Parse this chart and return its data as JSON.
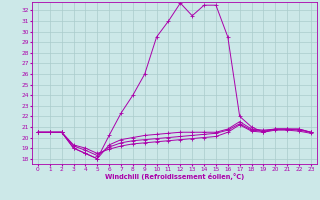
{
  "xlabel": "Windchill (Refroidissement éolien,°C)",
  "bg_color": "#cce8e8",
  "grid_color": "#aacccc",
  "line_color": "#aa00aa",
  "spine_color": "#aa00aa",
  "xlim": [
    -0.5,
    23.5
  ],
  "ylim": [
    17.5,
    32.8
  ],
  "xticks": [
    0,
    1,
    2,
    3,
    4,
    5,
    6,
    7,
    8,
    9,
    10,
    11,
    12,
    13,
    14,
    15,
    16,
    17,
    18,
    19,
    20,
    21,
    22,
    23
  ],
  "yticks": [
    18,
    19,
    20,
    21,
    22,
    23,
    24,
    25,
    26,
    27,
    28,
    29,
    30,
    31,
    32
  ],
  "series": [
    {
      "x": [
        0,
        1,
        2,
        3,
        4,
        5,
        6,
        7,
        8,
        9,
        10,
        11,
        12,
        13,
        14,
        15,
        16,
        17,
        18,
        19,
        20,
        21,
        22,
        23
      ],
      "y": [
        20.5,
        20.5,
        20.5,
        19.0,
        18.5,
        18.0,
        20.2,
        22.3,
        24.0,
        26.0,
        29.5,
        31.0,
        32.7,
        31.5,
        32.5,
        32.5,
        29.5,
        22.0,
        21.0,
        20.5,
        20.8,
        20.8,
        20.8,
        20.5
      ]
    },
    {
      "x": [
        0,
        1,
        2,
        3,
        4,
        5,
        6,
        7,
        8,
        9,
        10,
        11,
        12,
        13,
        14,
        15,
        16,
        17,
        18,
        19,
        20,
        21,
        22,
        23
      ],
      "y": [
        20.5,
        20.5,
        20.5,
        19.0,
        18.5,
        18.0,
        19.3,
        19.8,
        20.0,
        20.2,
        20.3,
        20.4,
        20.5,
        20.5,
        20.5,
        20.5,
        20.8,
        21.5,
        20.8,
        20.7,
        20.8,
        20.8,
        20.8,
        20.5
      ]
    },
    {
      "x": [
        0,
        1,
        2,
        3,
        4,
        5,
        6,
        7,
        8,
        9,
        10,
        11,
        12,
        13,
        14,
        15,
        16,
        17,
        18,
        19,
        20,
        21,
        22,
        23
      ],
      "y": [
        20.5,
        20.5,
        20.5,
        19.2,
        18.8,
        18.3,
        19.1,
        19.5,
        19.7,
        19.8,
        19.9,
        20.0,
        20.1,
        20.2,
        20.3,
        20.4,
        20.7,
        21.3,
        20.7,
        20.6,
        20.8,
        20.8,
        20.7,
        20.5
      ]
    },
    {
      "x": [
        0,
        1,
        2,
        3,
        4,
        5,
        6,
        7,
        8,
        9,
        10,
        11,
        12,
        13,
        14,
        15,
        16,
        17,
        18,
        19,
        20,
        21,
        22,
        23
      ],
      "y": [
        20.5,
        20.5,
        20.5,
        19.3,
        19.0,
        18.5,
        18.9,
        19.2,
        19.4,
        19.5,
        19.6,
        19.7,
        19.8,
        19.9,
        20.0,
        20.1,
        20.5,
        21.2,
        20.6,
        20.5,
        20.7,
        20.7,
        20.6,
        20.4
      ]
    }
  ]
}
